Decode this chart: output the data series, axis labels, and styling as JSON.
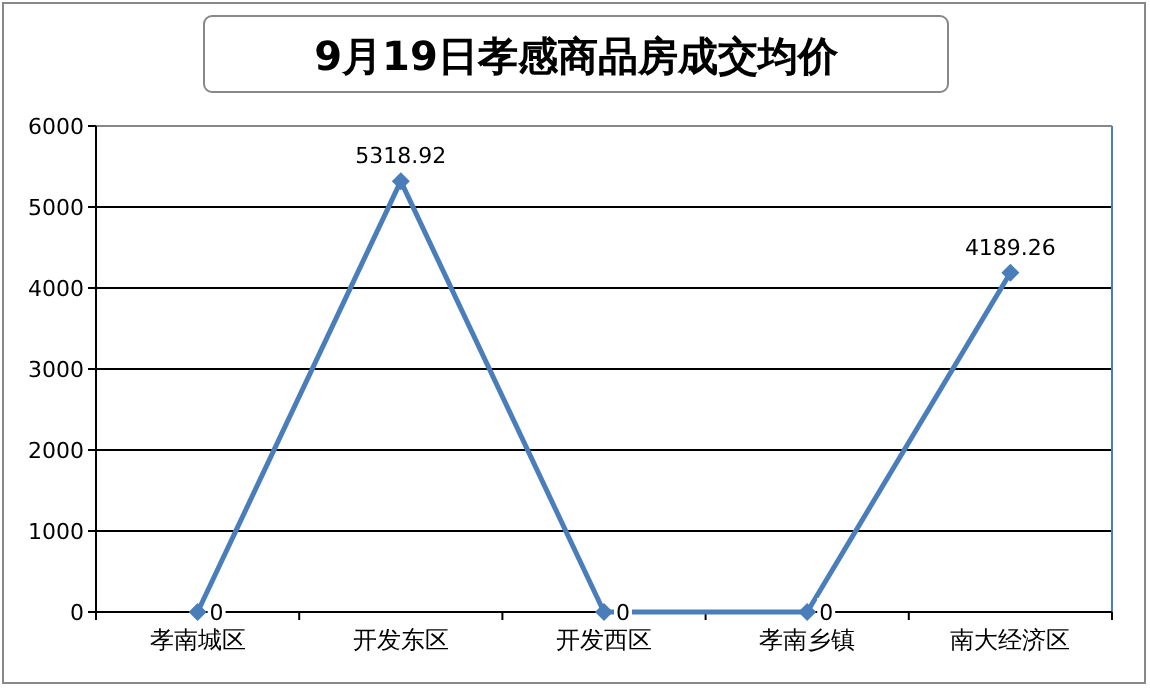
{
  "chart_data": {
    "type": "line",
    "title": "9月19日孝感商品房成交均价",
    "categories": [
      "孝南城区",
      "开发东区",
      "开发西区",
      "孝南乡镇",
      "南大经济区"
    ],
    "series": [
      {
        "color": "#4a7ebb",
        "values": [
          0,
          5318.92,
          0,
          0,
          4189.26
        ]
      }
    ],
    "ylim": [
      0,
      6000
    ],
    "yticks": [
      0,
      1000,
      2000,
      3000,
      4000,
      5000,
      6000
    ],
    "grid": "y",
    "marker": "diamond",
    "line_style": "solid",
    "data_labels": true
  }
}
